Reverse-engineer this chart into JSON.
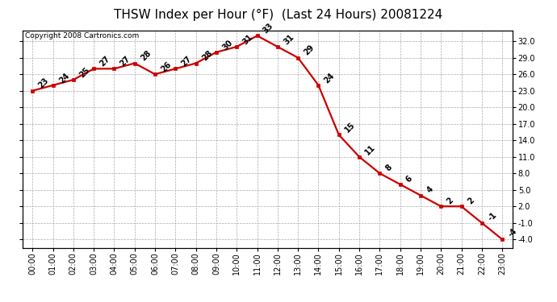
{
  "title": "THSW Index per Hour (°F)  (Last 24 Hours) 20081224",
  "copyright": "Copyright 2008 Cartronics.com",
  "hours": [
    0,
    1,
    2,
    3,
    4,
    5,
    6,
    7,
    8,
    9,
    10,
    11,
    12,
    13,
    14,
    15,
    16,
    17,
    18,
    19,
    20,
    21,
    22,
    23
  ],
  "values": [
    23,
    24,
    25,
    27,
    27,
    28,
    26,
    27,
    28,
    30,
    31,
    33,
    31,
    29,
    24,
    15,
    11,
    8,
    6,
    4,
    2,
    2,
    -1,
    -4
  ],
  "x_labels": [
    "00:00",
    "01:00",
    "02:00",
    "03:00",
    "04:00",
    "05:00",
    "06:00",
    "07:00",
    "08:00",
    "09:00",
    "10:00",
    "11:00",
    "12:00",
    "13:00",
    "14:00",
    "15:00",
    "16:00",
    "17:00",
    "18:00",
    "19:00",
    "20:00",
    "21:00",
    "22:00",
    "23:00"
  ],
  "yticks": [
    -4.0,
    -1.0,
    2.0,
    5.0,
    8.0,
    11.0,
    14.0,
    17.0,
    20.0,
    23.0,
    26.0,
    29.0,
    32.0
  ],
  "ylim": [
    -5.5,
    34.0
  ],
  "line_color": "#cc0000",
  "marker_color": "#cc0000",
  "bg_color": "#ffffff",
  "grid_color": "#aaaaaa",
  "title_fontsize": 11,
  "annot_fontsize": 7,
  "tick_fontsize": 7,
  "copyright_fontsize": 6.5
}
